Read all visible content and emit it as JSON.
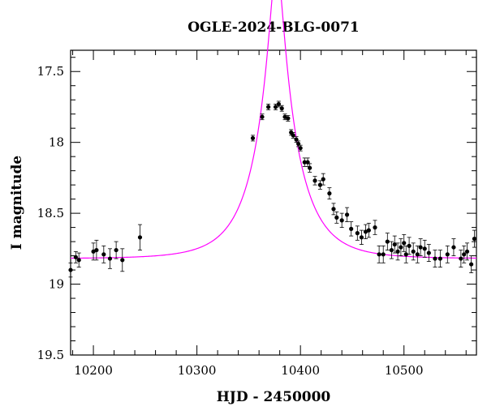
{
  "chart_data": {
    "type": "scatter",
    "title": "OGLE-2024-BLG-0071",
    "xlabel": "HJD - 2450000",
    "ylabel": "I magnitude",
    "xlim": [
      10178,
      10570
    ],
    "ylim": [
      19.5,
      17.35
    ],
    "y_inverted": true,
    "x_ticks": [
      10200,
      10300,
      10400,
      10500
    ],
    "y_ticks": [
      17.5,
      18,
      18.5,
      19,
      19.5
    ],
    "y_tick_labels": [
      "17.5",
      "18",
      "18.5",
      "19",
      "19.5"
    ],
    "model_color": "#ff00ff",
    "point_color": "#000000",
    "model": {
      "t0": 10377,
      "u0": 0.15,
      "tE": 40,
      "baseline": 18.82
    },
    "series": [
      {
        "type": "points_with_error_bars",
        "x": [
          10178,
          10183,
          10186,
          10200,
          10203,
          10210,
          10216,
          10222,
          10228,
          10245,
          10354,
          10363,
          10369,
          10376,
          10379,
          10382,
          10385,
          10388,
          10391,
          10393,
          10396,
          10398,
          10400,
          10404,
          10407,
          10409,
          10414,
          10419,
          10422,
          10428,
          10432,
          10435,
          10440,
          10445,
          10449,
          10455,
          10459,
          10463,
          10466,
          10472,
          10476,
          10480,
          10484,
          10488,
          10491,
          10494,
          10497,
          10500,
          10502,
          10505,
          10509,
          10513,
          10516,
          10520,
          10524,
          10530,
          10535,
          10542,
          10548,
          10555,
          10558,
          10561,
          10565,
          10568
        ],
        "y": [
          18.9,
          18.81,
          18.83,
          18.77,
          18.76,
          18.79,
          18.82,
          18.76,
          18.83,
          18.67,
          17.97,
          17.82,
          17.75,
          17.75,
          17.73,
          17.76,
          17.82,
          17.83,
          17.93,
          17.95,
          17.98,
          18.01,
          18.04,
          18.14,
          18.14,
          18.18,
          18.27,
          18.3,
          18.26,
          18.36,
          18.47,
          18.53,
          18.55,
          18.51,
          18.61,
          18.64,
          18.67,
          18.63,
          18.62,
          18.6,
          18.79,
          18.79,
          18.7,
          18.76,
          18.72,
          18.77,
          18.74,
          18.71,
          18.79,
          18.73,
          18.77,
          18.79,
          18.74,
          18.75,
          18.78,
          18.82,
          18.82,
          18.79,
          18.74,
          18.82,
          18.79,
          18.77,
          18.86,
          18.68
        ],
        "yerr": [
          0.05,
          0.04,
          0.05,
          0.06,
          0.07,
          0.06,
          0.07,
          0.06,
          0.08,
          0.09,
          0.02,
          0.02,
          0.02,
          0.02,
          0.02,
          0.02,
          0.02,
          0.02,
          0.02,
          0.02,
          0.02,
          0.02,
          0.02,
          0.03,
          0.03,
          0.03,
          0.03,
          0.03,
          0.04,
          0.04,
          0.04,
          0.04,
          0.05,
          0.05,
          0.05,
          0.05,
          0.05,
          0.05,
          0.05,
          0.05,
          0.06,
          0.06,
          0.06,
          0.06,
          0.06,
          0.06,
          0.06,
          0.06,
          0.06,
          0.06,
          0.06,
          0.06,
          0.06,
          0.06,
          0.06,
          0.06,
          0.06,
          0.06,
          0.06,
          0.06,
          0.06,
          0.06,
          0.06,
          0.06
        ]
      }
    ]
  }
}
